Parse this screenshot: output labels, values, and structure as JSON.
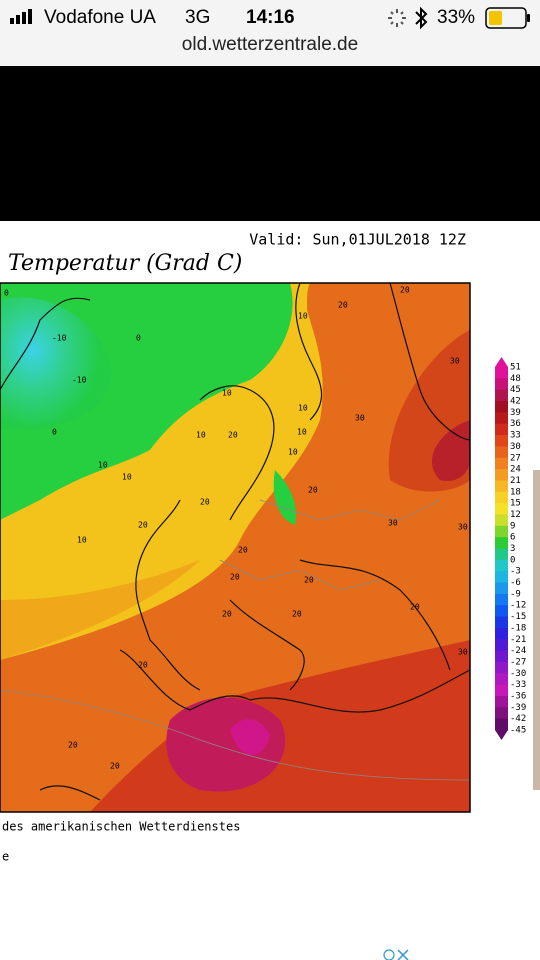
{
  "status_bar": {
    "carrier": "Vodafone UA",
    "network": "3G",
    "time": "14:16",
    "battery": "33%"
  },
  "browser": {
    "url": "old.wetterzentrale.de"
  },
  "map": {
    "valid": "Valid: Sun,01JUL2018 12Z",
    "title": "Temperatur (Grad C)",
    "labels": [
      -10,
      -10,
      0,
      0,
      0,
      10,
      10,
      10,
      10,
      10,
      10,
      10,
      20,
      20,
      20,
      20,
      20,
      20,
      20,
      20,
      20,
      20,
      20,
      20,
      30,
      30,
      30,
      30,
      30,
      10,
      20,
      10,
      20,
      20
    ],
    "legend": {
      "labels": [
        51,
        48,
        45,
        42,
        39,
        36,
        33,
        30,
        27,
        24,
        21,
        18,
        15,
        12,
        9,
        6,
        3,
        0,
        -3,
        -6,
        -9,
        -12,
        -15,
        -18,
        -21,
        -24,
        -27,
        -30,
        -33,
        -36,
        -39,
        -42,
        -45
      ]
    },
    "source": "des amerikanischen Wetterdienstes",
    "footer": "e"
  }
}
